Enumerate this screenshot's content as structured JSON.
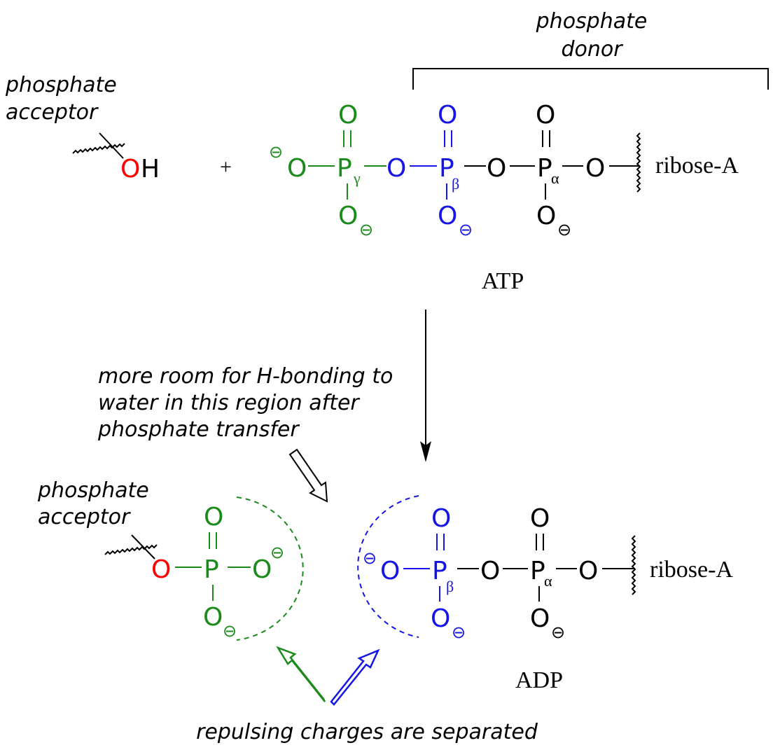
{
  "colors": {
    "gamma": "#1a8a1a",
    "beta": "#1515e6",
    "acceptor_oxygen": "#ff0000",
    "default": "#000000"
  },
  "labels": {
    "phosphate_donor_line1": "phosphate",
    "phosphate_donor_line2": "donor",
    "phosphate_acceptor_line1": "phosphate",
    "phosphate_acceptor_line2": "acceptor",
    "plus": "+",
    "atp": "ATP",
    "adp": "ADP",
    "ribose": "ribose-A",
    "note_line1": "more room for  H-bonding to",
    "note_line2": "water in this region after",
    "note_line3": "phosphate transfer",
    "bottom_caption": "repulsing charges are separated"
  },
  "atoms": {
    "O": "O",
    "P": "P",
    "H": "H",
    "gamma": "γ",
    "beta": "β",
    "alpha": "α",
    "double_bond": "=",
    "minus": "⊖"
  }
}
